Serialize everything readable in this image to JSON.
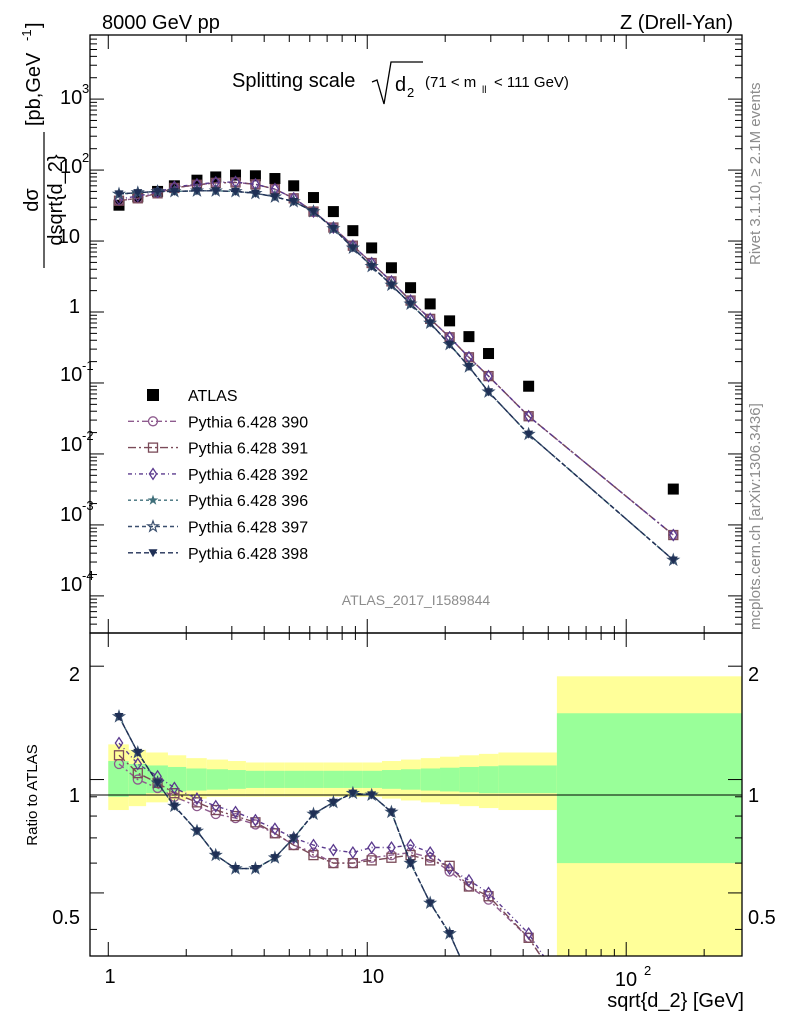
{
  "header": {
    "left": "8000 GeV pp",
    "right": "Z (Drell-Yan)"
  },
  "title": {
    "main": "Splitting scale",
    "sqrt_symbol": "√",
    "var": "d",
    "var_sub": "2",
    "cut": "(71 < m",
    "cut_sub": "ll",
    "cut_end": "< 111 GeV)"
  },
  "side_labels": {
    "rivet": "Rivet 3.1.10, ≥ 2.1M events",
    "mcplots": "mcplots.cern.ch [arXiv:1306.3436]"
  },
  "watermark": "ATLAS_2017_I1589844",
  "axes": {
    "ylabel_main_num": "dσ",
    "ylabel_main_den": "dsqrt{d_2}",
    "ylabel_main_unit": "[pb,GeV",
    "ylabel_main_unit_sup": "-1",
    "ylabel_main_unit_end": "]",
    "ylabel_ratio": "Ratio to ATLAS",
    "xlabel": "sqrt{d_2} [GeV]",
    "x_tick_labels": [
      "1",
      "10",
      "10",
      "2"
    ],
    "y_tick_labels_main": [
      {
        "base": "10",
        "exp": "-4"
      },
      {
        "base": "10",
        "exp": "-3"
      },
      {
        "base": "10",
        "exp": "-2"
      },
      {
        "base": "10",
        "exp": "-1"
      },
      {
        "base": "1",
        "exp": ""
      },
      {
        "base": "10",
        "exp": ""
      },
      {
        "base": "10",
        "exp": "2"
      },
      {
        "base": "10",
        "exp": "3"
      }
    ],
    "y_tick_labels_ratio": [
      "0.5",
      "1",
      "2"
    ]
  },
  "legend": [
    {
      "label": "ATLAS",
      "color": "#000000",
      "marker": "square-filled"
    },
    {
      "label": "Pythia 6.428 390",
      "color": "#8e5b8e",
      "marker": "circle-open"
    },
    {
      "label": "Pythia 6.428 391",
      "color": "#7a4a58",
      "marker": "square-open"
    },
    {
      "label": "Pythia 6.428 392",
      "color": "#5b3a8e",
      "marker": "diamond-open"
    },
    {
      "label": "Pythia 6.428 396",
      "color": "#3f6f7a",
      "marker": "star-filled"
    },
    {
      "label": "Pythia 6.428 397",
      "color": "#3a4f6e",
      "marker": "star-open"
    },
    {
      "label": "Pythia 6.428 398",
      "color": "#1f2f55",
      "marker": "triangle-down-filled"
    }
  ],
  "chart_data": {
    "type": "scatter",
    "x_scale": "log",
    "xlim": [
      0.85,
      280
    ],
    "main": {
      "y_scale": "log",
      "ylim": [
        3e-05,
        8000
      ],
      "x": [
        1.1,
        1.3,
        1.55,
        1.8,
        2.2,
        2.6,
        3.1,
        3.7,
        4.4,
        5.2,
        6.2,
        7.4,
        8.8,
        10.4,
        12.4,
        14.7,
        17.5,
        20.8,
        24.7,
        29.4,
        42,
        152
      ],
      "series": [
        {
          "name": "ATLAS",
          "values": [
            32,
            42,
            50,
            60,
            72,
            80,
            85,
            83,
            76,
            60,
            41,
            26,
            14,
            8,
            4.2,
            2.2,
            1.3,
            0.75,
            0.45,
            0.26,
            0.09,
            0.0032
          ]
        },
        {
          "name": "Pythia 6.428 390",
          "values": [
            37,
            40,
            47,
            56,
            62,
            66,
            67,
            63,
            54,
            40,
            26,
            15.5,
            8.6,
            4.9,
            2.7,
            1.45,
            0.8,
            0.44,
            0.23,
            0.125,
            0.034,
            0.00072
          ]
        },
        {
          "name": "Pythia 6.428 391",
          "values": [
            37,
            40,
            47,
            56,
            62,
            66,
            67,
            63,
            54,
            40,
            26,
            15.5,
            8.6,
            4.9,
            2.7,
            1.45,
            0.8,
            0.44,
            0.23,
            0.125,
            0.034,
            0.00072
          ]
        },
        {
          "name": "Pythia 6.428 392",
          "values": [
            39,
            43,
            49,
            58,
            63,
            67,
            68,
            63,
            54,
            40,
            26,
            15.5,
            8.6,
            4.9,
            2.7,
            1.45,
            0.8,
            0.44,
            0.23,
            0.125,
            0.034,
            0.00072
          ]
        },
        {
          "name": "Pythia 6.428 396",
          "values": [
            46,
            48,
            50,
            50,
            51,
            51,
            50,
            47,
            42,
            36,
            26,
            15,
            8,
            4.4,
            2.4,
            1.3,
            0.7,
            0.35,
            0.17,
            0.075,
            0.019,
            0.00032
          ]
        },
        {
          "name": "Pythia 6.428 397",
          "values": [
            46,
            48,
            50,
            50,
            51,
            51,
            50,
            47,
            42,
            36,
            26,
            15,
            8,
            4.4,
            2.4,
            1.3,
            0.7,
            0.35,
            0.17,
            0.075,
            0.019,
            0.00032
          ]
        },
        {
          "name": "Pythia 6.428 398",
          "values": [
            46,
            48,
            50,
            50,
            51,
            51,
            50,
            47,
            42,
            36,
            26,
            15,
            8,
            4.4,
            2.4,
            1.3,
            0.7,
            0.35,
            0.17,
            0.075,
            0.019,
            0.00032
          ]
        }
      ]
    },
    "ratio": {
      "y_scale": "log",
      "ylim": [
        0.34,
        2.45
      ],
      "bands": {
        "edges": [
          1.0,
          1.2,
          1.4,
          1.7,
          2.0,
          2.4,
          2.9,
          3.4,
          4.0,
          4.8,
          5.7,
          6.8,
          8.1,
          9.6,
          11.4,
          13.5,
          16.1,
          19.1,
          22.7,
          27.0,
          32.1,
          54,
          280
        ],
        "inner_lo": [
          0.9,
          0.91,
          0.92,
          0.93,
          0.935,
          0.94,
          0.945,
          0.95,
          0.95,
          0.95,
          0.95,
          0.95,
          0.95,
          0.95,
          0.945,
          0.94,
          0.935,
          0.93,
          0.925,
          0.92,
          0.92,
          0.6
        ],
        "inner_hi": [
          1.12,
          1.1,
          1.09,
          1.08,
          1.07,
          1.065,
          1.06,
          1.055,
          1.055,
          1.055,
          1.055,
          1.055,
          1.055,
          1.055,
          1.06,
          1.065,
          1.07,
          1.075,
          1.08,
          1.085,
          1.09,
          1.5
        ],
        "outer_lo": [
          0.83,
          0.85,
          0.87,
          0.88,
          0.89,
          0.9,
          0.9,
          0.9,
          0.9,
          0.9,
          0.9,
          0.9,
          0.9,
          0.9,
          0.89,
          0.88,
          0.87,
          0.86,
          0.85,
          0.84,
          0.83,
          0.3
        ],
        "outer_hi": [
          1.24,
          1.2,
          1.18,
          1.16,
          1.14,
          1.13,
          1.12,
          1.11,
          1.11,
          1.11,
          1.11,
          1.11,
          1.11,
          1.11,
          1.12,
          1.13,
          1.14,
          1.15,
          1.16,
          1.17,
          1.18,
          1.88
        ]
      },
      "series": [
        {
          "name": "Pythia 6.428 390",
          "values": [
            1.1,
            1.0,
            0.95,
            0.9,
            0.85,
            0.81,
            0.79,
            0.76,
            0.72,
            0.67,
            0.64,
            0.6,
            0.6,
            0.62,
            0.63,
            0.64,
            0.62,
            0.57,
            0.52,
            0.48,
            0.38,
            null
          ]
        },
        {
          "name": "Pythia 6.428 391",
          "values": [
            1.16,
            1.04,
            0.98,
            0.92,
            0.87,
            0.83,
            0.8,
            0.77,
            0.72,
            0.67,
            0.63,
            0.6,
            0.6,
            0.61,
            0.62,
            0.63,
            0.61,
            0.59,
            0.52,
            0.49,
            0.38,
            null
          ]
        },
        {
          "name": "Pythia 6.428 392",
          "values": [
            1.25,
            1.1,
            1.02,
            0.95,
            0.89,
            0.85,
            0.82,
            0.78,
            0.74,
            0.7,
            0.67,
            0.65,
            0.64,
            0.66,
            0.66,
            0.67,
            0.64,
            0.58,
            0.54,
            0.5,
            0.39,
            null
          ]
        },
        {
          "name": "Pythia 6.428 396",
          "values": [
            1.47,
            1.18,
            0.98,
            0.85,
            0.73,
            0.63,
            0.58,
            0.58,
            0.62,
            0.7,
            0.81,
            0.87,
            0.92,
            0.91,
            0.82,
            0.6,
            0.47,
            0.39,
            0.3,
            null,
            null,
            null
          ]
        },
        {
          "name": "Pythia 6.428 397",
          "values": [
            1.47,
            1.18,
            0.98,
            0.85,
            0.73,
            0.63,
            0.58,
            0.58,
            0.62,
            0.7,
            0.81,
            0.87,
            0.92,
            0.91,
            0.82,
            0.6,
            0.47,
            0.39,
            0.3,
            null,
            null,
            null
          ]
        },
        {
          "name": "Pythia 6.428 398",
          "values": [
            1.47,
            1.18,
            0.98,
            0.85,
            0.73,
            0.63,
            0.58,
            0.58,
            0.62,
            0.7,
            0.81,
            0.87,
            0.92,
            0.91,
            0.82,
            0.6,
            0.47,
            0.39,
            0.3,
            null,
            null,
            null
          ]
        }
      ]
    },
    "band_colors": {
      "outer": "#ffff99",
      "inner": "#99ff99"
    }
  }
}
